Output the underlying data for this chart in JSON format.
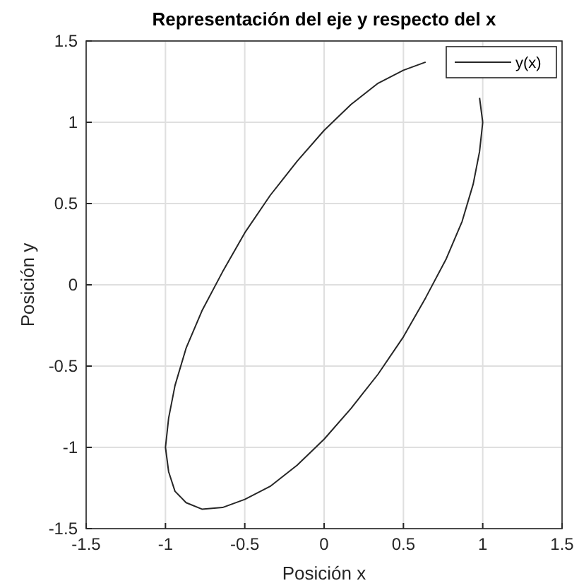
{
  "chart_data": {
    "type": "line",
    "title": "Representación del eje y respecto del x",
    "xlabel": "Posición x",
    "ylabel": "Posición y",
    "xlim": [
      -1.5,
      1.5
    ],
    "xticks": [
      -1.5,
      -1,
      -0.5,
      0,
      0.5,
      1,
      1.5
    ],
    "ylim": [
      -1.5,
      1.5
    ],
    "yticks": [
      -1.5,
      -1,
      -0.5,
      0,
      0.5,
      1,
      1.5
    ],
    "grid": true,
    "legend": "top right",
    "series": [
      {
        "name": "y(x)",
        "color": "#262626",
        "x": [
          1,
          0.98,
          0.94,
          0.87,
          0.77,
          0.64,
          0.5,
          0.34,
          0.17,
          0,
          -0.17,
          -0.34,
          -0.5,
          -0.64,
          -0.77,
          -0.87,
          -0.94,
          -0.98,
          -1,
          -0.98,
          -0.94,
          -0.87,
          -0.77,
          -0.64,
          -0.5,
          -0.34,
          -0.17,
          0,
          0.17,
          0.34,
          0.5,
          0.64,
          0.77,
          0.87,
          0.94,
          0.98,
          1
        ],
        "values": [
          1,
          1.15,
          null,
          null,
          null,
          1.37,
          1.32,
          1.24,
          1.11,
          0.95,
          0.76,
          0.55,
          0.32,
          0.08,
          -0.16,
          -0.39,
          -0.62,
          -0.82,
          -1,
          -1.15,
          -1.27,
          -1.34,
          -1.38,
          -1.37,
          -1.32,
          -1.24,
          -1.11,
          -0.95,
          -0.76,
          -0.55,
          -0.32,
          -0.08,
          0.16,
          0.39,
          0.62,
          0.82,
          1
        ]
      }
    ]
  }
}
